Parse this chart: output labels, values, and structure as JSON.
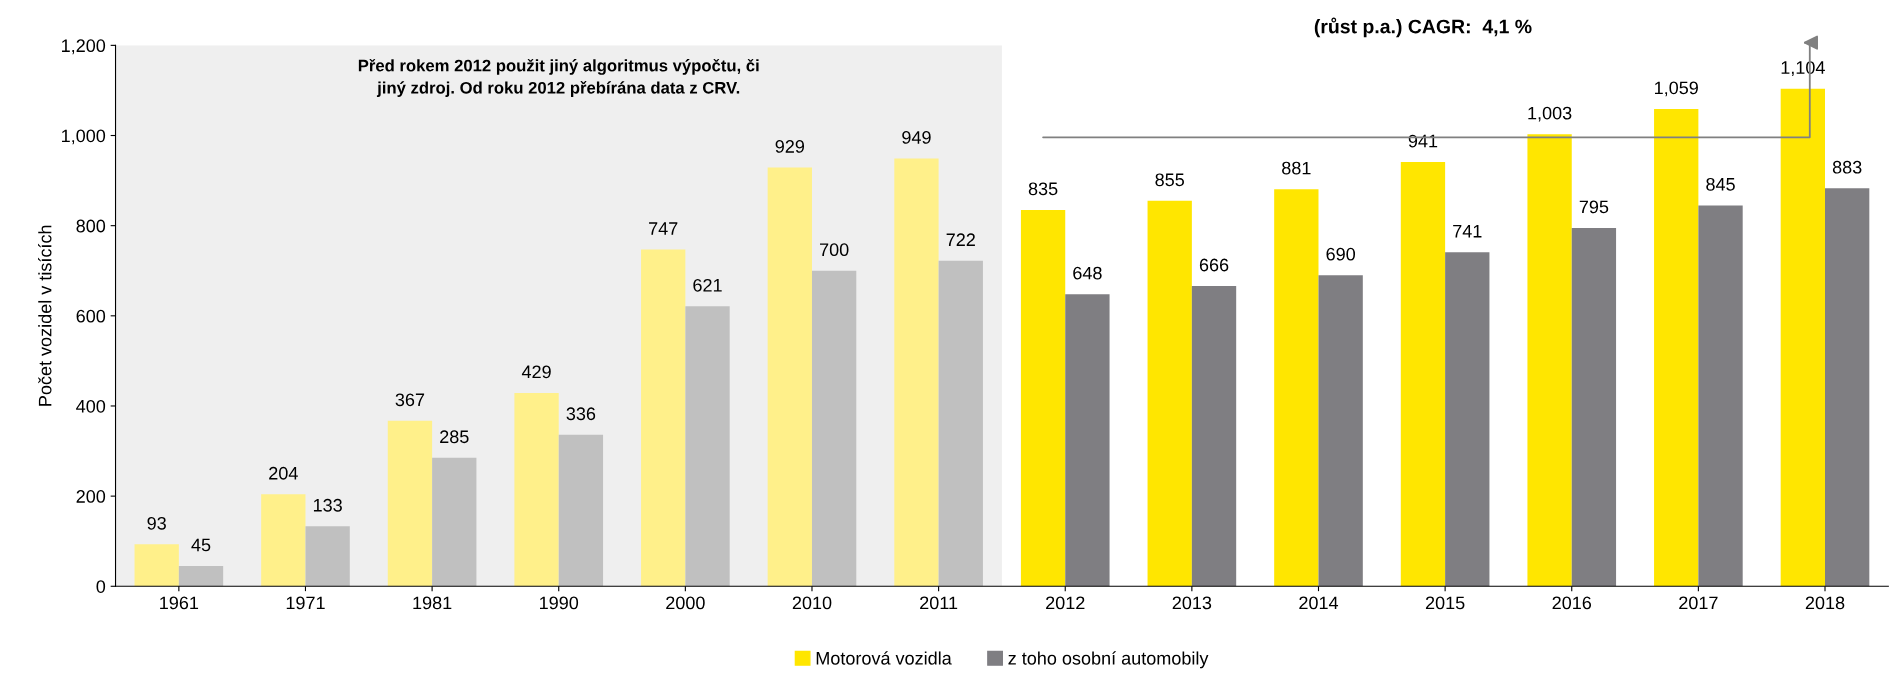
{
  "chart_data": {
    "type": "bar",
    "ylabel": "Počet vozidel v tisících",
    "categories": [
      "1961",
      "1971",
      "1981",
      "1990",
      "2000",
      "2010",
      "2011",
      "2012",
      "2013",
      "2014",
      "2015",
      "2016",
      "2017",
      "2018"
    ],
    "series": [
      {
        "name": "Motorová vozidla",
        "color": "#ffe600",
        "colors": [
          "#fff08a",
          "#fff08a",
          "#fff08a",
          "#fff08a",
          "#fff08a",
          "#fff08a",
          "#fff08a",
          "#ffe600",
          "#ffe600",
          "#ffe600",
          "#ffe600",
          "#ffe600",
          "#ffe600",
          "#ffe600"
        ],
        "values": [
          93,
          204,
          367,
          429,
          747,
          929,
          949,
          835,
          855,
          881,
          941,
          1003,
          1059,
          1104
        ],
        "value_labels": [
          "93",
          "204",
          "367",
          "429",
          "747",
          "929",
          "949",
          "835",
          "855",
          "881",
          "941",
          "1,003",
          "1,059",
          "1,104"
        ]
      },
      {
        "name": "z toho osobní automobily",
        "color": "#7f7e82",
        "colors": [
          "#c0c0c0",
          "#c0c0c0",
          "#c0c0c0",
          "#c0c0c0",
          "#c0c0c0",
          "#c0c0c0",
          "#c0c0c0",
          "#7f7e82",
          "#7f7e82",
          "#7f7e82",
          "#7f7e82",
          "#7f7e82",
          "#7f7e82",
          "#7f7e82"
        ],
        "values": [
          45,
          133,
          285,
          336,
          621,
          700,
          722,
          648,
          666,
          690,
          741,
          795,
          845,
          883
        ],
        "value_labels": [
          "45",
          "133",
          "285",
          "336",
          "621",
          "700",
          "722",
          "648",
          "666",
          "690",
          "741",
          "795",
          "845",
          "883"
        ]
      }
    ],
    "ylim": [
      0,
      1200
    ],
    "yticks": [
      0,
      200,
      400,
      600,
      800,
      {
        "value": 1000,
        "label": "1,000"
      },
      {
        "value": 1200,
        "label": "1,200"
      }
    ],
    "bands": [
      {
        "axis": "x",
        "from": "1961",
        "to": "2011",
        "label": "Před rokem 2012 použit jiný algoritmus výpočtu, či\njiný zdroj. Od roku 2012 přebírána data z CRV.",
        "color": "#efefef"
      }
    ],
    "annotations": [
      "(růst p.a.) CAGR:  4,1 %"
    ],
    "grid": false,
    "legend": "bottom"
  }
}
